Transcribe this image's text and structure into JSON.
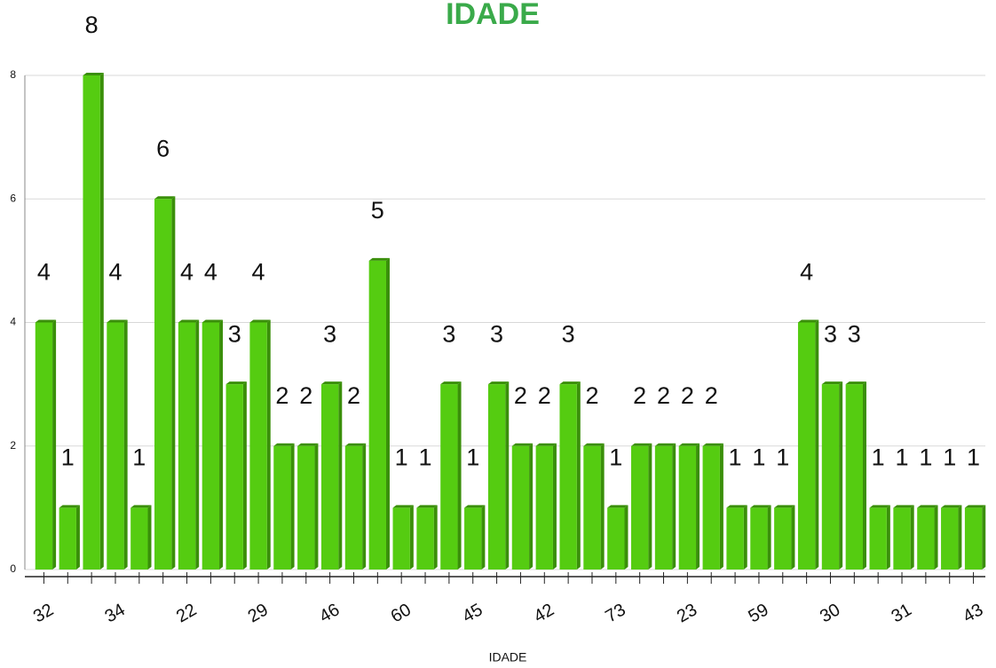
{
  "chart_data": {
    "type": "bar",
    "title": "IDADE",
    "x_label": "IDADE",
    "categories": [
      "32",
      null,
      null,
      "34",
      null,
      null,
      "22",
      null,
      null,
      "29",
      null,
      null,
      "46",
      null,
      null,
      "60",
      null,
      null,
      "45",
      null,
      null,
      "42",
      null,
      null,
      "73",
      null,
      null,
      "23",
      null,
      null,
      "59",
      null,
      null,
      "30",
      null,
      null,
      "31",
      null,
      null,
      "43"
    ],
    "values": [
      4,
      1,
      8,
      4,
      1,
      6,
      4,
      4,
      3,
      4,
      2,
      2,
      3,
      2,
      5,
      1,
      1,
      3,
      1,
      3,
      2,
      2,
      3,
      2,
      1,
      2,
      2,
      2,
      2,
      1,
      1,
      1,
      4,
      3,
      3,
      1,
      1,
      1,
      1,
      1
    ],
    "color": "#55cc11",
    "title_color": "#3aaa4a",
    "ylim": [
      0,
      8
    ],
    "yticks": [
      0,
      2,
      4,
      6,
      8
    ],
    "grid": true
  }
}
